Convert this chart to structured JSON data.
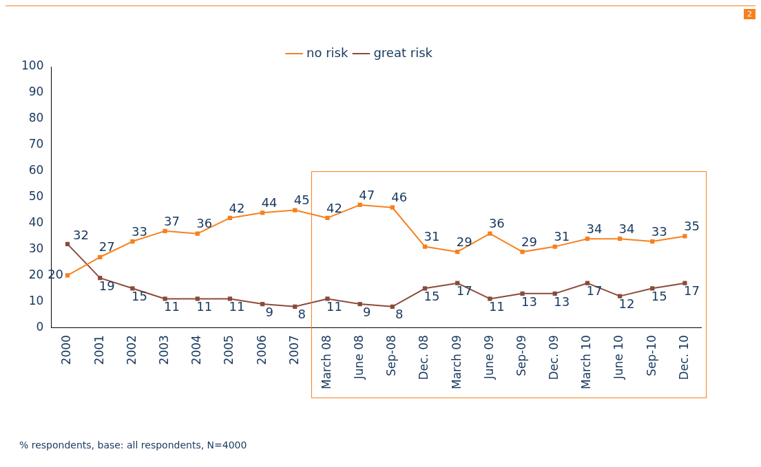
{
  "chart_data": {
    "type": "line",
    "categories": [
      "2000",
      "2001",
      "2002",
      "2003",
      "2004",
      "2005",
      "2006",
      "2007",
      "March 08",
      "June 08",
      "Sep-08",
      "Dec. 08",
      "March 09",
      "June 09",
      "Sep-09",
      "Dec. 09",
      "March 10",
      "June 10",
      "Sep-10",
      "Dec. 10"
    ],
    "series": [
      {
        "name": "no risk",
        "color": "#f7801e",
        "values": [
          20,
          27,
          33,
          37,
          36,
          42,
          44,
          45,
          42,
          47,
          46,
          31,
          29,
          36,
          29,
          31,
          34,
          34,
          33,
          35
        ]
      },
      {
        "name": "great risk",
        "color": "#8b4a3a",
        "values": [
          32,
          19,
          15,
          11,
          11,
          11,
          9,
          8,
          11,
          9,
          8,
          15,
          17,
          11,
          13,
          13,
          17,
          12,
          15,
          17
        ]
      }
    ],
    "ylim": [
      0,
      100
    ],
    "yticks": [
      0,
      10,
      20,
      30,
      40,
      50,
      60,
      70,
      80,
      90,
      100
    ],
    "grid": false,
    "legend": "top",
    "marker": "square",
    "line_style": "solid",
    "data_labels": true,
    "annotations": [
      "% respondents, base: all respondents, N=4000",
      "2"
    ]
  }
}
